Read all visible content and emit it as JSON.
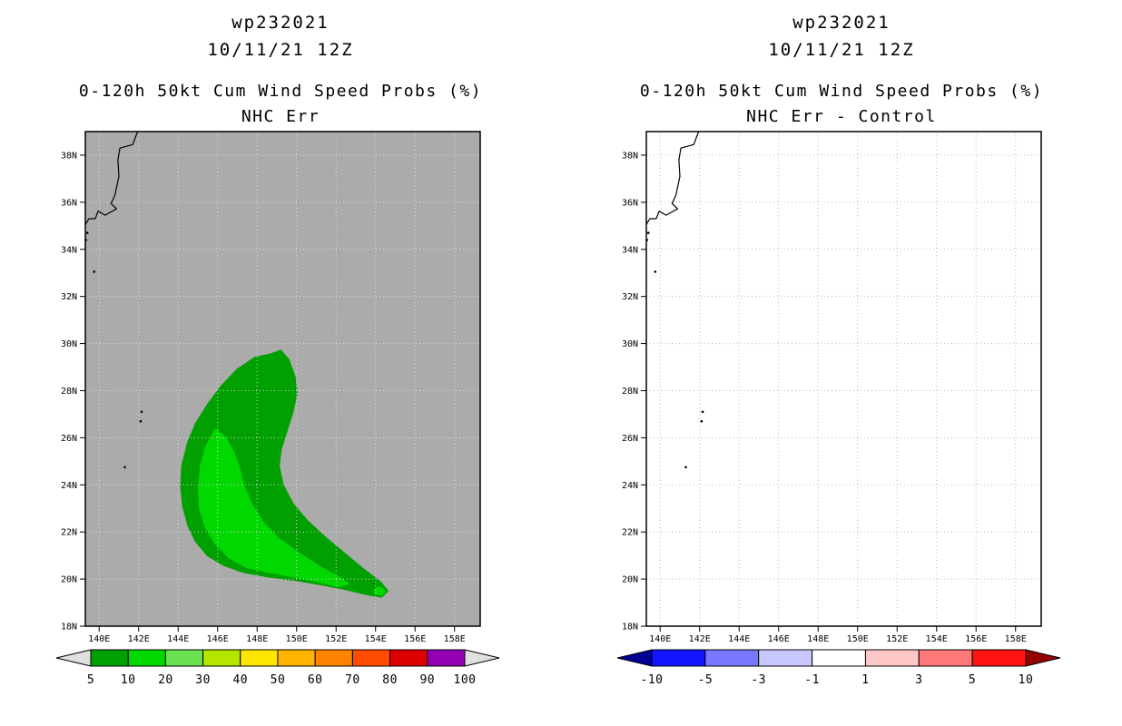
{
  "page": {
    "background": "#ffffff"
  },
  "chart_data": [
    {
      "type": "heatmap",
      "storm_id": "wp232021",
      "init_time": "10/11/21 12Z",
      "title": "0-120h 50kt Cum Wind Speed Probs (%)",
      "subtitle": "NHC Err",
      "units": "percent probability",
      "map": {
        "bg": "#ababab",
        "grid_color": "#dedede",
        "coast_color": "#000000",
        "lon_min": 139.3,
        "lon_max": 159.3,
        "lat_min": 18,
        "lat_max": 39,
        "grid_on": true,
        "lon_ticks": [
          {
            "v": 140,
            "label": "140E"
          },
          {
            "v": 142,
            "label": "142E"
          },
          {
            "v": 144,
            "label": "144E"
          },
          {
            "v": 146,
            "label": "146E"
          },
          {
            "v": 148,
            "label": "148E"
          },
          {
            "v": 150,
            "label": "150E"
          },
          {
            "v": 152,
            "label": "152E"
          },
          {
            "v": 154,
            "label": "154E"
          },
          {
            "v": 156,
            "label": "156E"
          },
          {
            "v": 158,
            "label": "158E"
          }
        ],
        "lat_ticks": [
          {
            "v": 18,
            "label": "18N"
          },
          {
            "v": 20,
            "label": "20N"
          },
          {
            "v": 22,
            "label": "22N"
          },
          {
            "v": 24,
            "label": "24N"
          },
          {
            "v": 26,
            "label": "26N"
          },
          {
            "v": 28,
            "label": "28N"
          },
          {
            "v": 30,
            "label": "30N"
          },
          {
            "v": 32,
            "label": "32N"
          },
          {
            "v": 34,
            "label": "34N"
          },
          {
            "v": 36,
            "label": "36N"
          },
          {
            "v": 38,
            "label": "38N"
          }
        ],
        "coastline": [
          [
            141.95,
            39.0
          ],
          [
            141.7,
            38.45
          ],
          [
            141.05,
            38.3
          ],
          [
            140.95,
            37.8
          ],
          [
            141.0,
            37.1
          ],
          [
            140.8,
            36.3
          ],
          [
            140.6,
            35.95
          ],
          [
            140.88,
            35.72
          ],
          [
            140.3,
            35.45
          ],
          [
            139.95,
            35.62
          ],
          [
            139.8,
            35.3
          ],
          [
            139.48,
            35.3
          ],
          [
            139.3,
            35.05
          ]
        ],
        "islands": [
          [
            139.4,
            34.7
          ],
          [
            139.33,
            34.4
          ],
          [
            139.75,
            33.05
          ],
          [
            142.15,
            27.1
          ],
          [
            142.1,
            26.7
          ],
          [
            141.3,
            24.75
          ]
        ],
        "contours": [
          {
            "name": "prob-contour-5pct",
            "level": 5,
            "color": "#00a000",
            "points": [
              [
                148.7,
                29.55
              ],
              [
                149.2,
                29.7
              ],
              [
                149.6,
                29.3
              ],
              [
                149.9,
                28.6
              ],
              [
                150.0,
                27.9
              ],
              [
                149.8,
                27.1
              ],
              [
                149.5,
                26.3
              ],
              [
                149.2,
                25.5
              ],
              [
                149.1,
                24.8
              ],
              [
                149.3,
                24.0
              ],
              [
                149.8,
                23.2
              ],
              [
                150.5,
                22.5
              ],
              [
                151.4,
                21.8
              ],
              [
                152.4,
                21.1
              ],
              [
                153.4,
                20.4
              ],
              [
                154.2,
                19.9
              ],
              [
                154.6,
                19.5
              ],
              [
                154.3,
                19.25
              ],
              [
                153.6,
                19.35
              ],
              [
                152.6,
                19.55
              ],
              [
                151.4,
                19.75
              ],
              [
                150.0,
                19.95
              ],
              [
                148.6,
                20.1
              ],
              [
                147.3,
                20.3
              ],
              [
                146.3,
                20.6
              ],
              [
                145.5,
                21.0
              ],
              [
                144.9,
                21.6
              ],
              [
                144.5,
                22.3
              ],
              [
                144.25,
                23.1
              ],
              [
                144.15,
                23.9
              ],
              [
                144.2,
                24.8
              ],
              [
                144.5,
                25.8
              ],
              [
                144.9,
                26.6
              ],
              [
                145.5,
                27.4
              ],
              [
                146.2,
                28.2
              ],
              [
                147.0,
                28.9
              ],
              [
                147.9,
                29.4
              ]
            ]
          },
          {
            "name": "prob-contour-10pct",
            "level": 10,
            "color": "#00d800",
            "points": [
              [
                145.9,
                26.35
              ],
              [
                146.4,
                26.0
              ],
              [
                146.8,
                25.4
              ],
              [
                147.1,
                24.7
              ],
              [
                147.3,
                24.0
              ],
              [
                147.7,
                23.2
              ],
              [
                148.3,
                22.4
              ],
              [
                149.1,
                21.7
              ],
              [
                150.1,
                21.1
              ],
              [
                151.2,
                20.5
              ],
              [
                152.2,
                20.05
              ],
              [
                152.6,
                19.8
              ],
              [
                152.1,
                19.7
              ],
              [
                151.1,
                19.9
              ],
              [
                149.9,
                20.1
              ],
              [
                148.6,
                20.3
              ],
              [
                147.5,
                20.5
              ],
              [
                146.6,
                20.9
              ],
              [
                145.9,
                21.5
              ],
              [
                145.4,
                22.2
              ],
              [
                145.1,
                23.0
              ],
              [
                145.05,
                23.9
              ],
              [
                145.15,
                24.8
              ],
              [
                145.4,
                25.6
              ]
            ]
          },
          {
            "name": "prob-contour-10pct-spot",
            "level": 10,
            "color": "#00d800",
            "points": [
              [
                153.95,
                19.5
              ],
              [
                154.1,
                19.65
              ],
              [
                154.35,
                19.6
              ],
              [
                154.45,
                19.45
              ],
              [
                154.25,
                19.33
              ],
              [
                154.0,
                19.38
              ]
            ]
          }
        ]
      },
      "colorbar": {
        "labels": [
          "5",
          "10",
          "20",
          "30",
          "40",
          "50",
          "60",
          "70",
          "80",
          "90",
          "100"
        ],
        "segment_colors": [
          "#00a000",
          "#00d800",
          "#69e150",
          "#b4e600",
          "#ffe600",
          "#ffb400",
          "#ff8200",
          "#ff4b00",
          "#dc0000",
          "#9600b4"
        ],
        "left_arrow": "#e0e0e0",
        "right_arrow": "#e0e0e0"
      }
    },
    {
      "type": "heatmap",
      "storm_id": "wp232021",
      "init_time": "10/11/21 12Z",
      "title": "0-120h 50kt Cum Wind Speed Probs (%)",
      "subtitle": "NHC Err - Control",
      "units": "percent probability difference",
      "map": {
        "bg": "#ffffff",
        "grid_color": "#b8b8b8",
        "coast_color": "#000000",
        "lon_min": 139.3,
        "lon_max": 159.3,
        "lat_min": 18,
        "lat_max": 39,
        "grid_on": true,
        "lon_ticks": [
          {
            "v": 140,
            "label": "140E"
          },
          {
            "v": 142,
            "label": "142E"
          },
          {
            "v": 144,
            "label": "144E"
          },
          {
            "v": 146,
            "label": "146E"
          },
          {
            "v": 148,
            "label": "148E"
          },
          {
            "v": 150,
            "label": "150E"
          },
          {
            "v": 152,
            "label": "152E"
          },
          {
            "v": 154,
            "label": "154E"
          },
          {
            "v": 156,
            "label": "156E"
          },
          {
            "v": 158,
            "label": "158E"
          }
        ],
        "lat_ticks": [
          {
            "v": 18,
            "label": "18N"
          },
          {
            "v": 20,
            "label": "20N"
          },
          {
            "v": 22,
            "label": "22N"
          },
          {
            "v": 24,
            "label": "24N"
          },
          {
            "v": 26,
            "label": "26N"
          },
          {
            "v": 28,
            "label": "28N"
          },
          {
            "v": 30,
            "label": "30N"
          },
          {
            "v": 32,
            "label": "32N"
          },
          {
            "v": 34,
            "label": "34N"
          },
          {
            "v": 36,
            "label": "36N"
          },
          {
            "v": 38,
            "label": "38N"
          }
        ],
        "coastline": [
          [
            141.95,
            39.0
          ],
          [
            141.7,
            38.45
          ],
          [
            141.05,
            38.3
          ],
          [
            140.95,
            37.8
          ],
          [
            141.0,
            37.1
          ],
          [
            140.8,
            36.3
          ],
          [
            140.6,
            35.95
          ],
          [
            140.88,
            35.72
          ],
          [
            140.3,
            35.45
          ],
          [
            139.95,
            35.62
          ],
          [
            139.8,
            35.3
          ],
          [
            139.48,
            35.3
          ],
          [
            139.3,
            35.05
          ]
        ],
        "islands": [
          [
            139.4,
            34.7
          ],
          [
            139.33,
            34.4
          ],
          [
            139.75,
            33.05
          ],
          [
            142.15,
            27.1
          ],
          [
            142.1,
            26.7
          ],
          [
            141.3,
            24.75
          ]
        ],
        "contours": []
      },
      "colorbar": {
        "labels": [
          "-10",
          "-5",
          "-3",
          "-1",
          "1",
          "3",
          "5",
          "10"
        ],
        "segment_colors": [
          "#1414ff",
          "#7878ff",
          "#c8c8ff",
          "#ffffff",
          "#ffc8c8",
          "#ff7878",
          "#ff1414"
        ],
        "left_arrow": "#000096",
        "right_arrow": "#960000"
      }
    }
  ]
}
